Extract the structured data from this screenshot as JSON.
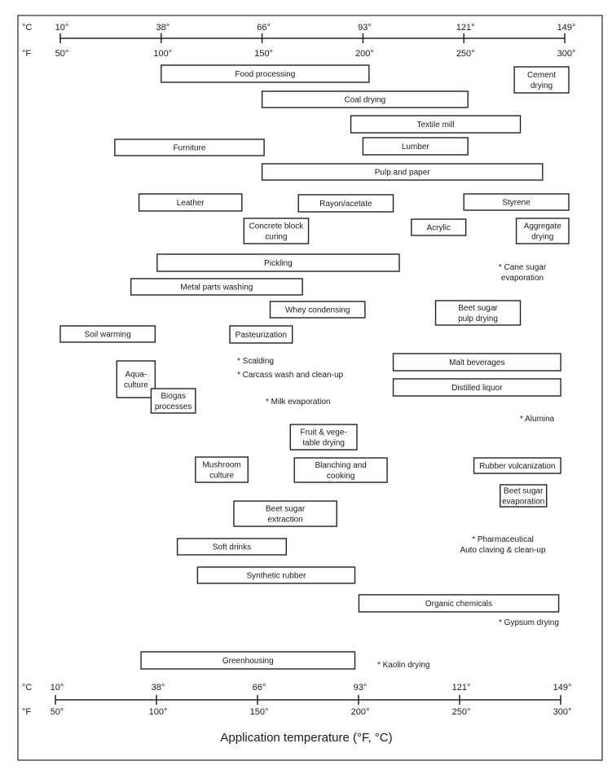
{
  "chart_data": {
    "type": "range-bar",
    "xlabel": "Application temperature (°F, °C)",
    "axis": {
      "celsius_unit": "°C",
      "fahrenheit_unit": "°F",
      "fahrenheit_ticks": [
        "50°",
        "100°",
        "150°",
        "200°",
        "250°",
        "300°"
      ],
      "celsius_ticks": [
        "10°",
        "38°",
        "66°",
        "93°",
        "121°",
        "149°"
      ],
      "xlim_f": [
        50,
        300
      ]
    },
    "ranges": [
      {
        "label": "Food processing",
        "lines": [
          "Food processing"
        ],
        "start_f": 100,
        "end_f": 203
      },
      {
        "label": "Cement drying",
        "lines": [
          "Cement",
          "drying"
        ],
        "start_f": 275,
        "end_f": 302
      },
      {
        "label": "Coal drying",
        "lines": [
          "Coal drying"
        ],
        "start_f": 150,
        "end_f": 252
      },
      {
        "label": "Textile mill",
        "lines": [
          "Textile mill"
        ],
        "start_f": 194,
        "end_f": 278
      },
      {
        "label": "Furniture",
        "lines": [
          "Furniture"
        ],
        "start_f": 77,
        "end_f": 151
      },
      {
        "label": "Lumber",
        "lines": [
          "Lumber"
        ],
        "start_f": 200,
        "end_f": 252
      },
      {
        "label": "Pulp and paper",
        "lines": [
          "Pulp and paper"
        ],
        "start_f": 150,
        "end_f": 289
      },
      {
        "label": "Leather",
        "lines": [
          "Leather"
        ],
        "start_f": 89,
        "end_f": 140
      },
      {
        "label": "Rayon/acetate",
        "lines": [
          "Rayon/acetate"
        ],
        "start_f": 168,
        "end_f": 215
      },
      {
        "label": "Styrene",
        "lines": [
          "Styrene"
        ],
        "start_f": 250,
        "end_f": 302
      },
      {
        "label": "Concrete block curing",
        "lines": [
          "Concrete block",
          "curing"
        ],
        "start_f": 141,
        "end_f": 173
      },
      {
        "label": "Acrylic",
        "lines": [
          "Acrylic"
        ],
        "start_f": 224,
        "end_f": 251
      },
      {
        "label": "Aggregate drying",
        "lines": [
          "Aggregate",
          "drying"
        ],
        "start_f": 276,
        "end_f": 302
      },
      {
        "label": "Pickling",
        "lines": [
          "Pickling"
        ],
        "start_f": 98,
        "end_f": 218
      },
      {
        "label": "Metal parts washing",
        "lines": [
          "Metal parts washing"
        ],
        "start_f": 85,
        "end_f": 170
      },
      {
        "label": "Whey condensing",
        "lines": [
          "Whey condensing"
        ],
        "start_f": 154,
        "end_f": 201
      },
      {
        "label": "Beet sugar pulp drying",
        "lines": [
          "Beet sugar",
          "pulp drying"
        ],
        "start_f": 236,
        "end_f": 278
      },
      {
        "label": "Soil warming",
        "lines": [
          "Soil warming"
        ],
        "start_f": 50,
        "end_f": 97
      },
      {
        "label": "Pasteurization",
        "lines": [
          "Pasteurization"
        ],
        "start_f": 134,
        "end_f": 165
      },
      {
        "label": "Aquaculture",
        "lines": [
          "Aqua-",
          "culture"
        ],
        "start_f": 78,
        "end_f": 97
      },
      {
        "label": "Malt beverages",
        "lines": [
          "Malt beverages"
        ],
        "start_f": 215,
        "end_f": 298
      },
      {
        "label": "Distilled liquor",
        "lines": [
          "Distilled liquor"
        ],
        "start_f": 215,
        "end_f": 298
      },
      {
        "label": "Biogas processes",
        "lines": [
          "Biogas",
          "processes"
        ],
        "start_f": 95,
        "end_f": 117
      },
      {
        "label": "Fruit & vegetable drying",
        "lines": [
          "Fruit & vege-",
          "table drying"
        ],
        "start_f": 164,
        "end_f": 197
      },
      {
        "label": "Mushroom culture",
        "lines": [
          "Mushroom",
          "culture"
        ],
        "start_f": 117,
        "end_f": 143
      },
      {
        "label": "Blanching and cooking",
        "lines": [
          "Blanching and",
          "cooking"
        ],
        "start_f": 166,
        "end_f": 212
      },
      {
        "label": "Rubber vulcanization",
        "lines": [
          "Rubber vulcanization"
        ],
        "start_f": 255,
        "end_f": 298
      },
      {
        "label": "Beet sugar evaporation",
        "lines": [
          "Beet sugar",
          "evaporation"
        ],
        "start_f": 268,
        "end_f": 291
      },
      {
        "label": "Beet sugar extraction",
        "lines": [
          "Beet sugar",
          "extraction"
        ],
        "start_f": 136,
        "end_f": 187
      },
      {
        "label": "Soft drinks",
        "lines": [
          "Soft drinks"
        ],
        "start_f": 108,
        "end_f": 162
      },
      {
        "label": "Synthetic rubber",
        "lines": [
          "Synthetic rubber"
        ],
        "start_f": 118,
        "end_f": 196
      },
      {
        "label": "Organic chemicals",
        "lines": [
          "Organic chemicals"
        ],
        "start_f": 198,
        "end_f": 297
      },
      {
        "label": "Greenhousing",
        "lines": [
          "Greenhousing"
        ],
        "start_f": 90,
        "end_f": 196
      }
    ],
    "point_notes": [
      {
        "lines": [
          "* Cane sugar",
          "evaporation"
        ]
      },
      {
        "lines": [
          "* Scalding"
        ]
      },
      {
        "lines": [
          "* Carcass wash and clean-up"
        ]
      },
      {
        "lines": [
          "* Milk evaporation"
        ]
      },
      {
        "lines": [
          "* Alumina"
        ]
      },
      {
        "lines": [
          "* Pharmaceutical",
          "Auto claving & clean-up"
        ]
      },
      {
        "lines": [
          "* Gypsum drying"
        ]
      },
      {
        "lines": [
          "* Kaolin drying"
        ]
      }
    ],
    "colors": {
      "stroke": "#222222",
      "text": "#1a1a1a",
      "background": "#ffffff"
    }
  }
}
